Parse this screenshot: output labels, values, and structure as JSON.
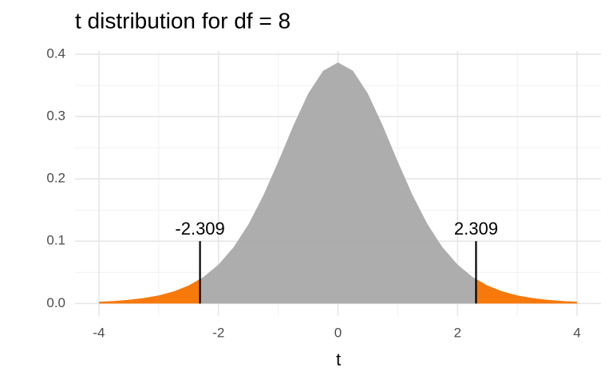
{
  "chart_data": {
    "type": "area",
    "title": "t distribution for df = 8",
    "x_label": "t",
    "x": [
      -4,
      -3.75,
      -3.5,
      -3.25,
      -3,
      -2.75,
      -2.5,
      -2.25,
      -2,
      -1.75,
      -1.5,
      -1.25,
      -1,
      -0.75,
      -0.5,
      -0.25,
      0,
      0.25,
      0.5,
      0.75,
      1,
      1.25,
      1.5,
      1.75,
      2,
      2.25,
      2.5,
      2.75,
      3,
      3.25,
      3.5,
      3.75,
      4
    ],
    "values": [
      0.00276,
      0.00403,
      0.00592,
      0.00876,
      0.01301,
      0.01936,
      0.02877,
      0.04257,
      0.06237,
      0.08995,
      0.12677,
      0.17326,
      0.22761,
      0.2848,
      0.3367,
      0.37339,
      0.3867,
      0.37339,
      0.3367,
      0.2848,
      0.22761,
      0.17326,
      0.12677,
      0.08995,
      0.06237,
      0.04257,
      0.02877,
      0.01936,
      0.01301,
      0.00876,
      0.00592,
      0.00403,
      0.00276
    ],
    "color": "#a9a9a9",
    "tail_color": "#f8790b",
    "critical_values": [
      -2.309,
      2.309
    ],
    "critical_line_top": 0.1,
    "xlim": [
      -4.4,
      4.4
    ],
    "ylim": [
      -0.02,
      0.405
    ],
    "xticks": [
      -4,
      -2,
      0,
      2,
      4
    ],
    "yticks": [
      {
        "value": 0,
        "label": "0.0"
      },
      0.1,
      0.2,
      0.3,
      0.4
    ],
    "grid": true,
    "minor_grid": true
  }
}
